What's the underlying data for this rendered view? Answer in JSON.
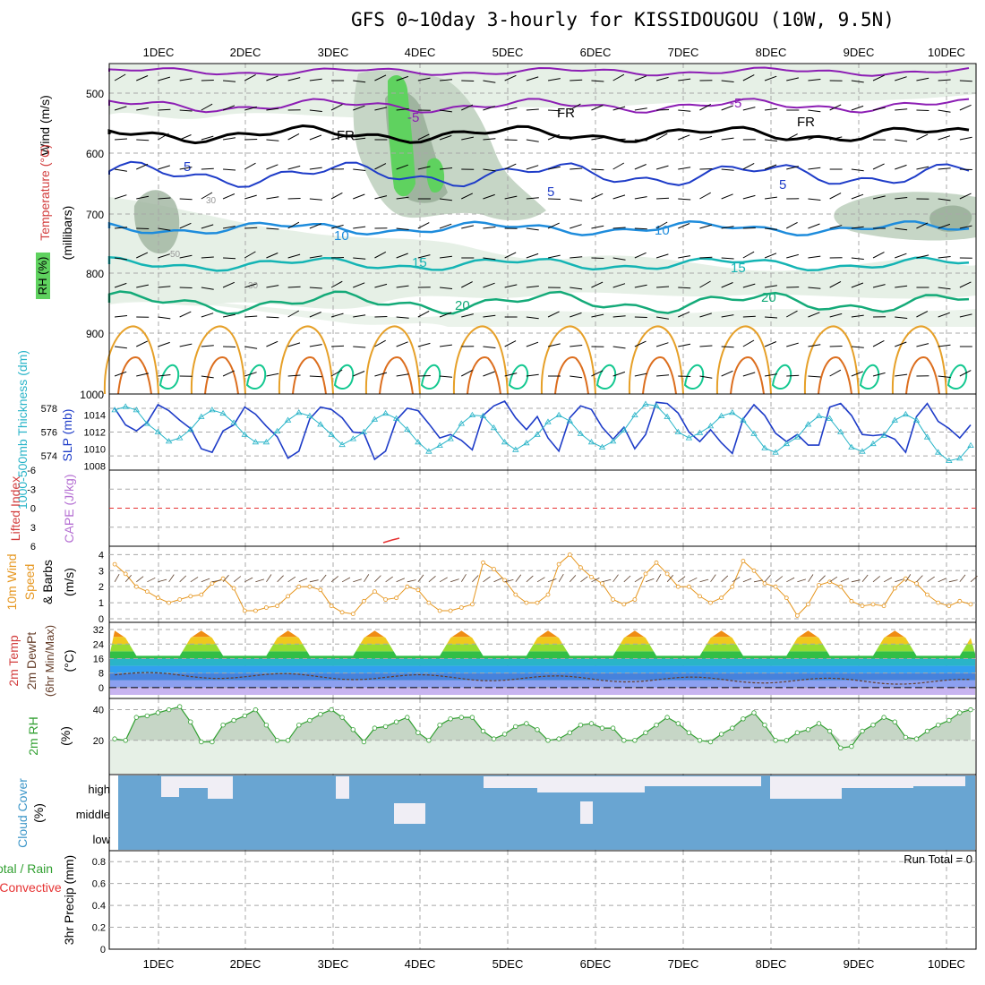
{
  "title": "GFS 0~10day 3-hourly for KISSIDOUGOU (10W, 9.5N)",
  "x_day_labels": [
    "1DEC",
    "2DEC",
    "3DEC",
    "4DEC",
    "5DEC",
    "6DEC",
    "7DEC",
    "8DEC",
    "9DEC",
    "10DEC"
  ],
  "panels": {
    "upper": {
      "ylabel_wind": "Wind (m/s)",
      "ylabel_temp": "Temperature (°C)",
      "ylabel_rh": "RH (%)",
      "ylabel_unit": "(millibars)",
      "yticks": [
        "500",
        "600",
        "700",
        "800",
        "900",
        "1000"
      ],
      "contour_labels": [
        "-5",
        "-5",
        "FR",
        "FR",
        "FR",
        "5",
        "5",
        "5",
        "10",
        "10",
        "15",
        "15",
        "20",
        "20",
        "30",
        "30",
        "50"
      ]
    },
    "thick": {
      "ylabel_left": "1000-500mb Thickness (dm)",
      "ylabel_right": "SLP (mb)",
      "yticks_left": [
        "578",
        "576",
        "574"
      ],
      "yticks_right": [
        "1014",
        "1012",
        "1010",
        "1008"
      ]
    },
    "cape": {
      "ylabel_left": "Lifted Index",
      "ylabel_right": "CAPE (J/kg)",
      "yticks": [
        "-6",
        "-3",
        "0",
        "3",
        "6"
      ]
    },
    "wind10": {
      "ylabel_a": "10m Wind",
      "ylabel_b": "Speed",
      "ylabel_c": "& Barbs",
      "ylabel_unit": "(m/s)",
      "yticks": [
        "4",
        "3",
        "2",
        "1",
        "0"
      ]
    },
    "temp2m": {
      "ylabel_a": "2m Temp",
      "ylabel_b": "2m DewPt",
      "ylabel_c": "(6hr Min/Max)",
      "ylabel_unit": "(°C)",
      "yticks": [
        "32",
        "24",
        "16",
        "8",
        "0"
      ]
    },
    "rh2m": {
      "ylabel": "2m RH",
      "ylabel_unit": "(%)",
      "yticks": [
        "40",
        "20"
      ]
    },
    "cloud": {
      "ylabel": "Cloud Cover",
      "ylabel_unit": "(%)",
      "levels": [
        "high",
        "middle",
        "low"
      ]
    },
    "precip": {
      "ylabel_a": "Total / Rain",
      "ylabel_b": "Convective",
      "ylabel_c": "3hr Precip (mm)",
      "yticks": [
        "0.8",
        "0.6",
        "0.4",
        "0.2",
        "0"
      ],
      "run_total": "Run Total = 0"
    }
  },
  "colors": {
    "grid": "#a8a8a8",
    "rh_light": "#e6f0e6",
    "rh_mid": "#c6d6c6",
    "rh_dark": "#9fb49f",
    "rh_green": "#5fd25f",
    "t_minus5": "#8c1eb4",
    "t_fr": "#000000",
    "t_5": "#1e3cc8",
    "t_10": "#1e8cdc",
    "t_15": "#14b4b4",
    "t_20": "#14aa78",
    "t_warm_a": "#e6a028",
    "t_warm_b": "#dc6e1e",
    "t_warm_c": "#14c890",
    "thickness": "#1e3cc8",
    "slp": "#28b4c8",
    "lifted": "#e63232",
    "wind10": "#e6961e",
    "rh2m": "#32a032",
    "cloud": "#69a5d2",
    "cloud_gap": "#f0eef5"
  },
  "chart_data": [
    {
      "type": "line",
      "panel": "1000-500mb Thickness (dm) / SLP (mb)",
      "series": [
        {
          "name": "1000-500mb Thickness (dm)",
          "values": [
            578,
            576.6,
            576.1,
            576.8,
            578.3,
            577.8,
            577,
            576.3,
            574.6,
            574.3,
            576.1,
            576.6,
            578.1,
            577.5,
            576.5,
            575.6,
            573.8,
            574.4,
            577.1,
            578.1,
            577.9,
            577.2,
            576,
            575.9,
            573.7,
            574.4,
            577,
            578,
            577.8,
            576.7,
            575.5,
            575.8,
            575.3,
            574.5,
            577.4,
            578.2,
            578.6,
            577.2,
            576.2,
            577.3,
            575.5,
            574.4,
            577.2,
            578.2,
            577.9,
            576.4,
            575.4,
            576.4,
            574.6,
            575.8,
            578.5,
            578.4,
            577.6,
            576,
            575.2,
            576.2,
            575.1,
            574.2,
            577.1,
            578.3,
            577.4,
            575.9,
            575.2,
            575.8,
            574.9,
            574.9,
            578.1,
            578.4,
            577.4,
            575.8,
            575.7,
            575.8,
            575.4,
            574.3,
            577.3,
            578.4,
            576.9,
            576.3,
            575.5,
            576.6
          ]
        },
        {
          "name": "SLP (mb)",
          "values": [
            1014.6,
            1015,
            1014.6,
            1013,
            1012,
            1010.9,
            1011.3,
            1012.3,
            1013.8,
            1014.6,
            1014.2,
            1013.1,
            1011.7,
            1010.8,
            1010.8,
            1012.1,
            1013.4,
            1014.3,
            1013.9,
            1012.9,
            1011.7,
            1010.5,
            1011.2,
            1012,
            1013.5,
            1014.2,
            1013.6,
            1012.3,
            1010.8,
            1009.7,
            1010.4,
            1011.2,
            1013,
            1014,
            1013.9,
            1012.5,
            1010.8,
            1009.9,
            1010.7,
            1011.7,
            1013.2,
            1014,
            1013.3,
            1011.8,
            1010.8,
            1010.2,
            1010.9,
            1012.2,
            1014,
            1015.3,
            1015.1,
            1013.8,
            1012,
            1011.3,
            1011.9,
            1012.7,
            1013.9,
            1014.3,
            1013.4,
            1011.8,
            1010.1,
            1009.6,
            1010.6,
            1011.4,
            1012.9,
            1013.9,
            1013.6,
            1012,
            1010.2,
            1009.7,
            1010.6,
            1011.6,
            1013.4,
            1014.1,
            1013.4,
            1011.4,
            1009.6,
            1008.6,
            1008.9,
            1010.4
          ]
        }
      ]
    },
    {
      "type": "line",
      "panel": "10m Wind Speed (m/s)",
      "series": [
        {
          "name": "Speed",
          "values": [
            3.4,
            2.8,
            2.0,
            1.7,
            1.3,
            1.0,
            1.2,
            1.4,
            1.5,
            2.2,
            2.5,
            1.9,
            0.5,
            0.5,
            0.7,
            0.8,
            1.4,
            2.0,
            2.0,
            1.8,
            0.8,
            0.4,
            0.3,
            1.1,
            1.7,
            1.2,
            1.3,
            2.0,
            1.8,
            1.0,
            0.5,
            0.5,
            0.7,
            0.9,
            3.5,
            3.1,
            2.4,
            1.5,
            1.0,
            1.0,
            1.5,
            3.4,
            4.0,
            3.2,
            2.6,
            2.2,
            1.2,
            0.9,
            1.2,
            2.8,
            3.5,
            2.8,
            2.0,
            2.0,
            1.4,
            1.0,
            1.3,
            2.0,
            3.6,
            3.0,
            2.2,
            2.0,
            1.3,
            0.2,
            0.9,
            2.1,
            2.3,
            2.0,
            1.1,
            0.8,
            0.9,
            0.8,
            1.9,
            2.5,
            2.2,
            1.5,
            1.0,
            0.8,
            1.1,
            0.9
          ]
        }
      ]
    },
    {
      "type": "line",
      "panel": "2m RH (%)",
      "series": [
        {
          "name": "2m RH",
          "values": [
            21,
            20,
            35,
            36,
            38,
            40,
            42,
            32,
            19,
            19,
            30,
            33,
            36,
            40,
            30,
            20,
            20,
            30,
            33,
            37,
            40,
            35,
            27,
            19,
            28,
            29,
            32,
            35,
            25,
            20,
            30,
            34,
            35,
            35,
            26,
            21,
            24,
            29,
            31,
            27,
            20,
            21,
            25,
            30,
            31,
            28,
            28,
            20,
            20,
            25,
            30,
            35,
            31,
            25,
            20,
            19,
            24,
            28,
            34,
            38,
            30,
            20,
            20,
            25,
            27,
            31,
            26,
            15,
            16,
            26,
            30,
            35,
            32,
            22,
            21,
            26,
            30,
            33,
            38,
            40
          ]
        }
      ]
    },
    {
      "type": "area",
      "panel": "Cloud Cover (%)",
      "levels": [
        "high",
        "middle",
        "low"
      ]
    },
    {
      "type": "bar",
      "panel": "3hr Precip (mm)",
      "ylim": [
        0,
        0.9
      ],
      "values": []
    }
  ]
}
